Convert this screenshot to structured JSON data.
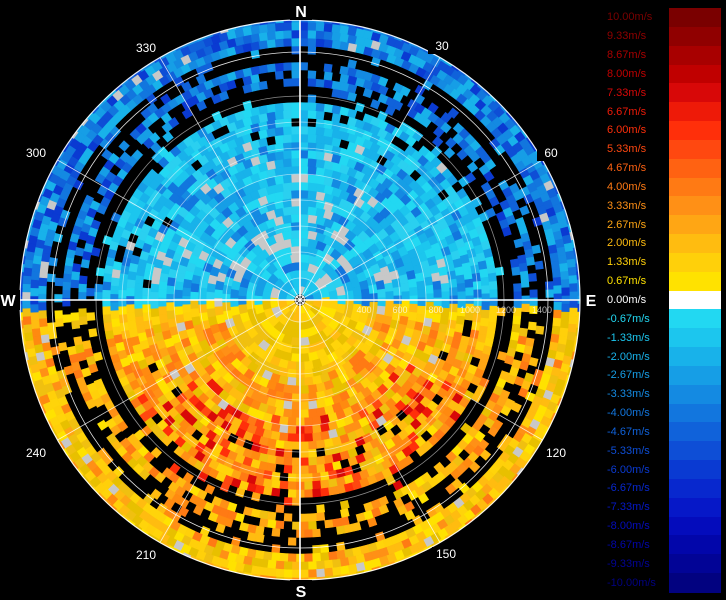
{
  "compass": {
    "north": "N",
    "east": "E",
    "south": "S",
    "west": "W",
    "degrees": [
      {
        "deg": 30,
        "text": "30"
      },
      {
        "deg": 60,
        "text": "60"
      },
      {
        "deg": 120,
        "text": "120"
      },
      {
        "deg": 150,
        "text": "150"
      },
      {
        "deg": 210,
        "text": "210"
      },
      {
        "deg": 240,
        "text": "240"
      },
      {
        "deg": 300,
        "text": "300"
      },
      {
        "deg": 330,
        "text": "330"
      }
    ]
  },
  "range_labels": [
    "400",
    "600",
    "800",
    "1000",
    "1200",
    "1400"
  ],
  "scale": {
    "entries": [
      {
        "label": "10.00m/s",
        "color": "#7a0000"
      },
      {
        "label": "9.33m/s",
        "color": "#900000"
      },
      {
        "label": "8.67m/s",
        "color": "#a80000"
      },
      {
        "label": "8.00m/s",
        "color": "#c00000"
      },
      {
        "label": "7.33m/s",
        "color": "#d80808"
      },
      {
        "label": "6.67m/s",
        "color": "#ee1a08"
      },
      {
        "label": "6.00m/s",
        "color": "#ff2f0a"
      },
      {
        "label": "5.33m/s",
        "color": "#ff4810"
      },
      {
        "label": "4.67m/s",
        "color": "#ff6212"
      },
      {
        "label": "4.00m/s",
        "color": "#ff7a14"
      },
      {
        "label": "3.33m/s",
        "color": "#ff9016"
      },
      {
        "label": "2.67m/s",
        "color": "#ffa614"
      },
      {
        "label": "2.00m/s",
        "color": "#ffbc10"
      },
      {
        "label": "1.33m/s",
        "color": "#ffd00a"
      },
      {
        "label": "0.67m/s",
        "color": "#ffe200"
      },
      {
        "label": "0.00m/s",
        "color": "#ffffff"
      },
      {
        "label": "-0.67m/s",
        "color": "#22d8f2"
      },
      {
        "label": "-1.33m/s",
        "color": "#1cc6ee"
      },
      {
        "label": "-2.00m/s",
        "color": "#18b2ea"
      },
      {
        "label": "-2.67m/s",
        "color": "#169ee6"
      },
      {
        "label": "-3.33m/s",
        "color": "#148ae2"
      },
      {
        "label": "-4.00m/s",
        "color": "#1276de"
      },
      {
        "label": "-4.67m/s",
        "color": "#1062da"
      },
      {
        "label": "-5.33m/s",
        "color": "#0e4ed6"
      },
      {
        "label": "-6.00m/s",
        "color": "#0a3ad2"
      },
      {
        "label": "-6.67m/s",
        "color": "#0828ce"
      },
      {
        "label": "-7.33m/s",
        "color": "#0618c8"
      },
      {
        "label": "-8.00m/s",
        "color": "#040cbc"
      },
      {
        "label": "-8.67m/s",
        "color": "#0206aa"
      },
      {
        "label": "-9.33m/s",
        "color": "#020496"
      },
      {
        "label": "-10.00m/s",
        "color": "#020280"
      }
    ]
  },
  "colors": {
    "background": "#000000",
    "grid": "#ffffff",
    "no_data": "#c8c8c8",
    "approaching": "#1e9fe0",
    "receding": "#f0c010"
  },
  "icons": {
    "center_marker": "radar-center-icon"
  }
}
